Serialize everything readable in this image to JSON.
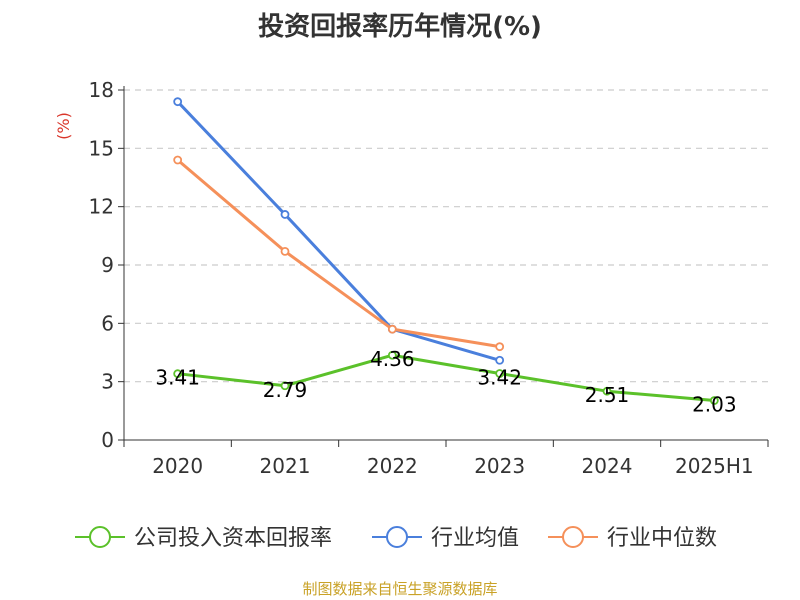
{
  "chart_data": {
    "type": "line",
    "title": "投资回报率历年情况(%)",
    "ylabel": "(%)",
    "xlabel": "",
    "categories": [
      "2020",
      "2021",
      "2022",
      "2023",
      "2024",
      "2025H1"
    ],
    "yticks": [
      "0",
      "3",
      "6",
      "9",
      "12",
      "15",
      "18"
    ],
    "ylim": [
      0,
      18
    ],
    "grid": true,
    "legend_position": "bottom",
    "series": [
      {
        "name": "公司投入资本回报率",
        "color": "#5bc12a",
        "values": [
          3.41,
          2.79,
          4.36,
          3.42,
          2.51,
          2.03
        ],
        "labels": [
          "3.41",
          "2.79",
          "4.36",
          "3.42",
          "2.51",
          "2.03"
        ]
      },
      {
        "name": "行业均值",
        "color": "#4a7fdc",
        "values": [
          17.4,
          11.6,
          5.7,
          4.1,
          null,
          null
        ]
      },
      {
        "name": "行业中位数",
        "color": "#f5905a",
        "values": [
          14.4,
          9.7,
          5.7,
          4.8,
          null,
          null
        ]
      }
    ]
  },
  "footer": {
    "source": "制图数据来自恒生聚源数据库"
  },
  "colors": {
    "ylabel": "#d9362b",
    "grid": "#cccccc",
    "axis": "#333333",
    "source": "#c9a227"
  }
}
